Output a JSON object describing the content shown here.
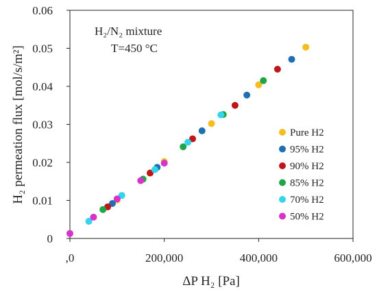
{
  "chart_data": {
    "type": "scatter",
    "xlabel": "ΔP H₂ [Pa]",
    "ylabel": "H₂ permeation flux [mol/s/m²]",
    "xlim": [
      0,
      600000
    ],
    "ylim": [
      0,
      0.06
    ],
    "x_ticks": [
      0,
      200000,
      400000,
      600000
    ],
    "x_tick_labels": [
      ",0",
      "200,000",
      "400,000",
      "600,000"
    ],
    "y_ticks": [
      0,
      0.01,
      0.02,
      0.03,
      0.04,
      0.05,
      0.06
    ],
    "y_tick_labels": [
      "0",
      "0.01",
      "0.02",
      "0.03",
      "0.04",
      "0.05",
      "0.06"
    ],
    "annotation": [
      "H₂/N₂ mixture",
      "T=450 °C"
    ],
    "grid": false,
    "legend_position": "lower-right",
    "series": [
      {
        "name": "Pure H2",
        "color": "#f5bd1f",
        "points": [
          [
            100000,
            0.0101
          ],
          [
            200000,
            0.0202
          ],
          [
            300000,
            0.0302
          ],
          [
            400000,
            0.0404
          ],
          [
            500000,
            0.0503
          ]
        ]
      },
      {
        "name": "95% H2",
        "color": "#1f6fb5",
        "points": [
          [
            90000,
            0.0092
          ],
          [
            185000,
            0.0187
          ],
          [
            280000,
            0.0283
          ],
          [
            375000,
            0.0377
          ],
          [
            470000,
            0.0471
          ]
        ]
      },
      {
        "name": "90% H2",
        "color": "#c0161a",
        "points": [
          [
            80000,
            0.0083
          ],
          [
            170000,
            0.0172
          ],
          [
            260000,
            0.0262
          ],
          [
            350000,
            0.035
          ],
          [
            440000,
            0.0445
          ]
        ]
      },
      {
        "name": "85% H2",
        "color": "#1ea646",
        "points": [
          [
            70000,
            0.0076
          ],
          [
            155000,
            0.0156
          ],
          [
            240000,
            0.0241
          ],
          [
            325000,
            0.0326
          ],
          [
            410000,
            0.0415
          ]
        ]
      },
      {
        "name": "70% H2",
        "color": "#33d4ec",
        "points": [
          [
            40000,
            0.0045
          ],
          [
            110000,
            0.0113
          ],
          [
            180000,
            0.0181
          ],
          [
            250000,
            0.0253
          ],
          [
            320000,
            0.0325
          ]
        ]
      },
      {
        "name": "50% H2",
        "color": "#d633c8",
        "points": [
          [
            0,
            0.0013
          ],
          [
            50000,
            0.0056
          ],
          [
            100000,
            0.0104
          ],
          [
            150000,
            0.0152
          ],
          [
            200000,
            0.0198
          ]
        ]
      }
    ]
  }
}
